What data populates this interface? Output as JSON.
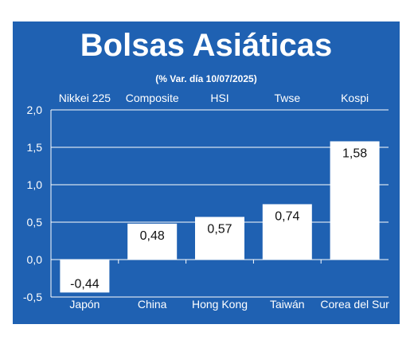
{
  "chart_data": {
    "type": "bar",
    "title": "Bolsas Asiáticas",
    "subtitle": "(% Var. día  10/07/2025)",
    "index_names": [
      "Nikkei 225",
      "Composite",
      "HSI",
      "Twse",
      "Kospi"
    ],
    "categories": [
      "Japón",
      "China",
      "Hong Kong",
      "Taiwán",
      "Corea del Sur"
    ],
    "values": [
      -0.44,
      0.48,
      0.57,
      0.74,
      1.58
    ],
    "value_labels": [
      "-0,44",
      "0,48",
      "0,57",
      "0,74",
      "1,58"
    ],
    "y_ticks": [
      "2,0",
      "1,5",
      "1,0",
      "0,5",
      "0,0",
      "-0,5"
    ],
    "ylim": [
      -0.5,
      2.0
    ],
    "grid": true,
    "colors": {
      "background": "#1f61b2",
      "bar": "#ffffff",
      "grid": "#ffffff",
      "text": "#ffffff",
      "value_text": "#111111"
    }
  }
}
